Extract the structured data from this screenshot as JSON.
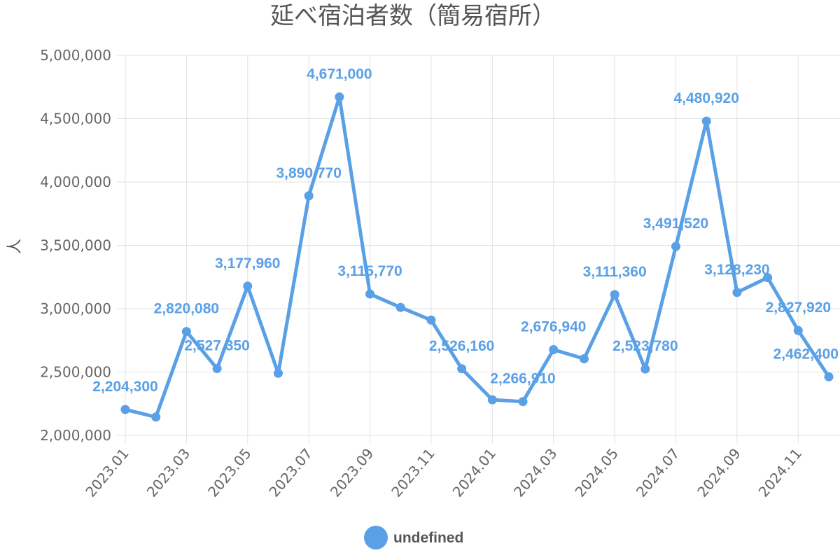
{
  "chart_data": {
    "type": "line",
    "title": "延べ宿泊者数（簡易宿所）",
    "ylabel": "人",
    "xlabel": "",
    "ylim": [
      2000000,
      5000000
    ],
    "y_ticks": [
      2000000,
      2500000,
      3000000,
      3500000,
      4000000,
      4500000,
      5000000
    ],
    "y_tick_labels": [
      "2,000,000",
      "2,500,000",
      "3,000,000",
      "3,500,000",
      "4,000,000",
      "4,500,000",
      "5,000,000"
    ],
    "grid": true,
    "x": [
      "2023.01",
      "2023.02",
      "2023.03",
      "2023.04",
      "2023.05",
      "2023.06",
      "2023.07",
      "2023.08",
      "2023.09",
      "2023.10",
      "2023.11",
      "2023.12",
      "2024.01",
      "2024.02",
      "2024.03",
      "2024.04",
      "2024.05",
      "2024.06",
      "2024.07",
      "2024.08",
      "2024.09",
      "2024.10",
      "2024.11",
      "2024.12"
    ],
    "x_tick_labels": [
      "2023.01",
      "2023.03",
      "2023.05",
      "2023.07",
      "2023.09",
      "2023.11",
      "2024.01",
      "2024.03",
      "2024.05",
      "2024.07",
      "2024.09",
      "2024.11"
    ],
    "series": [
      {
        "name": "undefined",
        "color": "#5aa0e6",
        "values": [
          2204300,
          2145000,
          2820080,
          2527350,
          3177960,
          2490000,
          3890770,
          4671000,
          3115770,
          3010000,
          2910000,
          2526160,
          2281000,
          2266910,
          2676940,
          2605000,
          3111360,
          2523780,
          3491520,
          4480920,
          3128230,
          3245000,
          2827920,
          2462400
        ],
        "labels": [
          "2,204,300",
          "",
          "2,820,080",
          "2,527,350",
          "3,177,960",
          "",
          "3,890,770",
          "4,671,000",
          "3,115,770",
          "",
          "",
          "2,526,160",
          "",
          "2,266,910",
          "2,676,940",
          "",
          "3,111,360",
          "2,523,780",
          "3,491,520",
          "4,480,920",
          "3,128,230",
          "",
          "2,827,920",
          "2,462,400"
        ]
      }
    ],
    "legend": {
      "position": "bottom",
      "entries": [
        "undefined"
      ]
    }
  }
}
